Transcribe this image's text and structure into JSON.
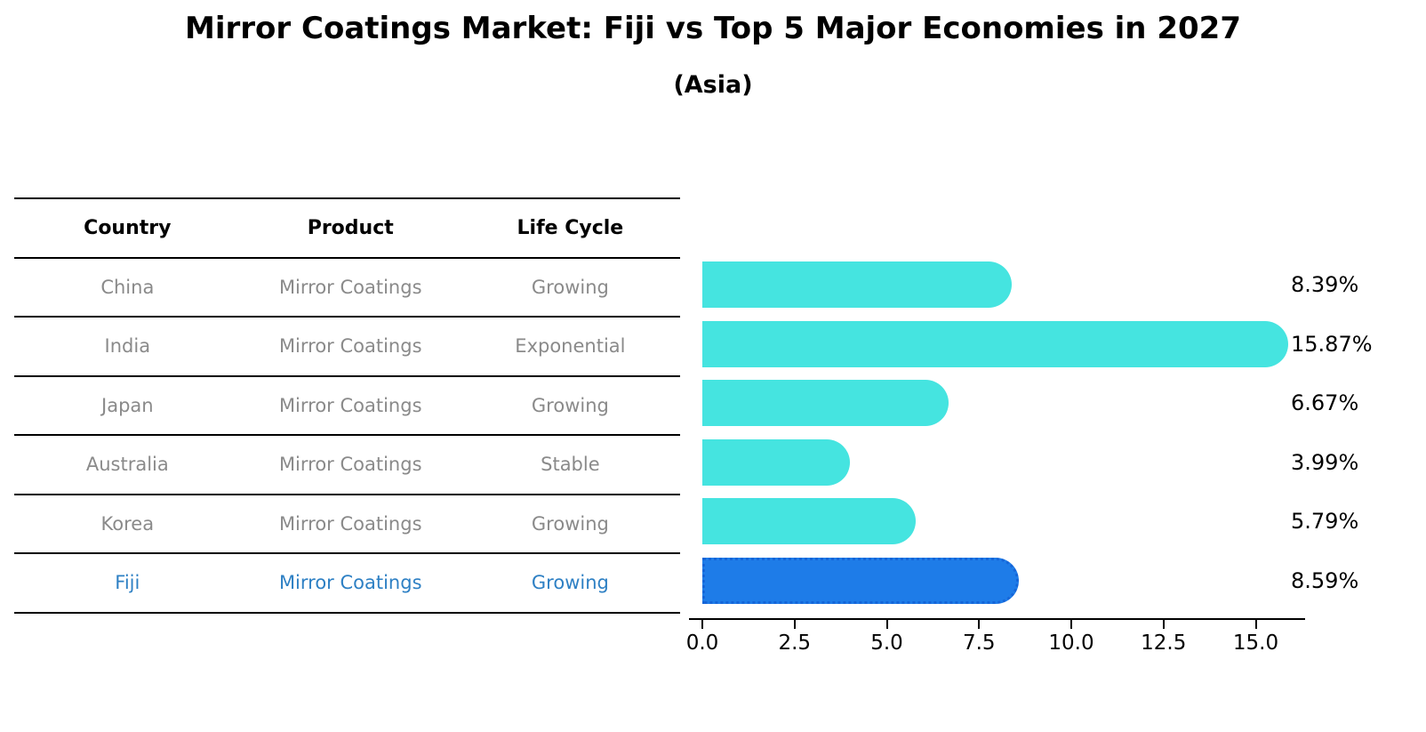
{
  "title": "Mirror Coatings Market: Fiji vs Top 5 Major Economies in 2027",
  "subtitle": "(Asia)",
  "table": {
    "headers": [
      "Country",
      "Product",
      "Life Cycle"
    ],
    "rows": [
      {
        "country": "China",
        "product": "Mirror Coatings",
        "life_cycle": "Growing",
        "highlight": false
      },
      {
        "country": "India",
        "product": "Mirror Coatings",
        "life_cycle": "Exponential",
        "highlight": false
      },
      {
        "country": "Japan",
        "product": "Mirror Coatings",
        "life_cycle": "Growing",
        "highlight": false
      },
      {
        "country": "Australia",
        "product": "Mirror Coatings",
        "life_cycle": "Stable",
        "highlight": false
      },
      {
        "country": "Korea",
        "product": "Mirror Coatings",
        "life_cycle": "Growing",
        "highlight": false
      },
      {
        "country": "Fiji",
        "product": "Mirror Coatings",
        "life_cycle": "Growing",
        "highlight": true
      }
    ]
  },
  "chart_data": {
    "type": "bar",
    "orientation": "horizontal",
    "title": "Mirror Coatings Market: Fiji vs Top 5 Major Economies in 2027",
    "subtitle": "(Asia)",
    "categories": [
      "China",
      "India",
      "Japan",
      "Australia",
      "Korea",
      "Fiji"
    ],
    "values": [
      8.39,
      15.87,
      6.67,
      3.99,
      5.79,
      8.59
    ],
    "value_labels": [
      "8.39%",
      "15.87%",
      "6.67%",
      "3.99%",
      "5.79%",
      "8.59%"
    ],
    "x_ticks": [
      0.0,
      2.5,
      5.0,
      7.5,
      10.0,
      12.5,
      15.0
    ],
    "x_tick_labels": [
      "0.0",
      "2.5",
      "5.0",
      "7.5",
      "10.0",
      "12.5",
      "15.0"
    ],
    "xlim": [
      0,
      16.7
    ],
    "grid": false,
    "legend": false,
    "highlight_index": 5,
    "bar_color": "#45e4e0",
    "highlight_color": "#1e7ce8",
    "highlight_border_color": "#1565d8"
  }
}
